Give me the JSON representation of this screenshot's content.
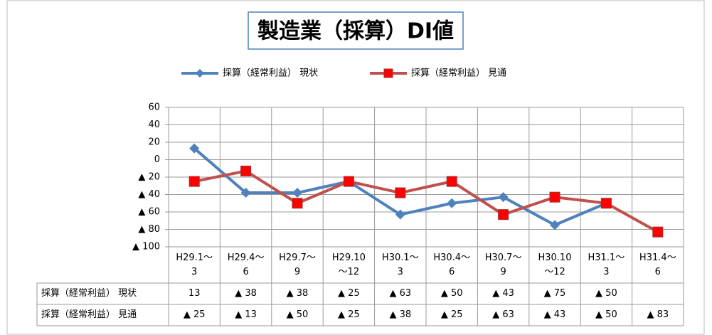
{
  "chart_data": {
    "type": "line",
    "title": "製造業（採算）DI値",
    "categories": [
      "H29.1～\n3",
      "H29.4～\n6",
      "H29.7～\n9",
      "H29.10\n～12",
      "H30.1～\n3",
      "H30.4～\n6",
      "H30.7～\n9",
      "H30.10\n～12",
      "H31.1～\n3",
      "H31.4～\n6"
    ],
    "series": [
      {
        "name": "採算（経常利益） 現状",
        "color": "#4f81bd",
        "marker": "diamond",
        "values": [
          13,
          -38,
          -38,
          -25,
          -63,
          -50,
          -43,
          -75,
          -50,
          null
        ],
        "value_labels": [
          "13",
          "▲ 38",
          "▲ 38",
          "▲ 25",
          "▲ 63",
          "▲ 50",
          "▲ 43",
          "▲ 75",
          "▲ 50",
          null
        ]
      },
      {
        "name": "採算（経常利益） 見通",
        "color": "#c0504d",
        "marker": "square",
        "values": [
          -25,
          -13,
          -50,
          -25,
          -38,
          -25,
          -63,
          -43,
          -50,
          -83
        ],
        "value_labels": [
          "▲ 25",
          "▲ 13",
          "▲ 50",
          "▲ 25",
          "▲ 38",
          "▲ 25",
          "▲ 63",
          "▲ 43",
          "▲ 50",
          "▲ 83"
        ]
      }
    ],
    "ylim": [
      -100,
      60
    ],
    "yticks": [
      60,
      40,
      20,
      0,
      {
        "value": -20,
        "label": "▲ 20"
      },
      {
        "value": -40,
        "label": "▲ 40"
      },
      {
        "value": -60,
        "label": "▲ 60"
      },
      {
        "value": -80,
        "label": "▲ 80"
      },
      {
        "value": -100,
        "label": "▲ 100"
      }
    ],
    "grid": true,
    "legend": "top"
  }
}
